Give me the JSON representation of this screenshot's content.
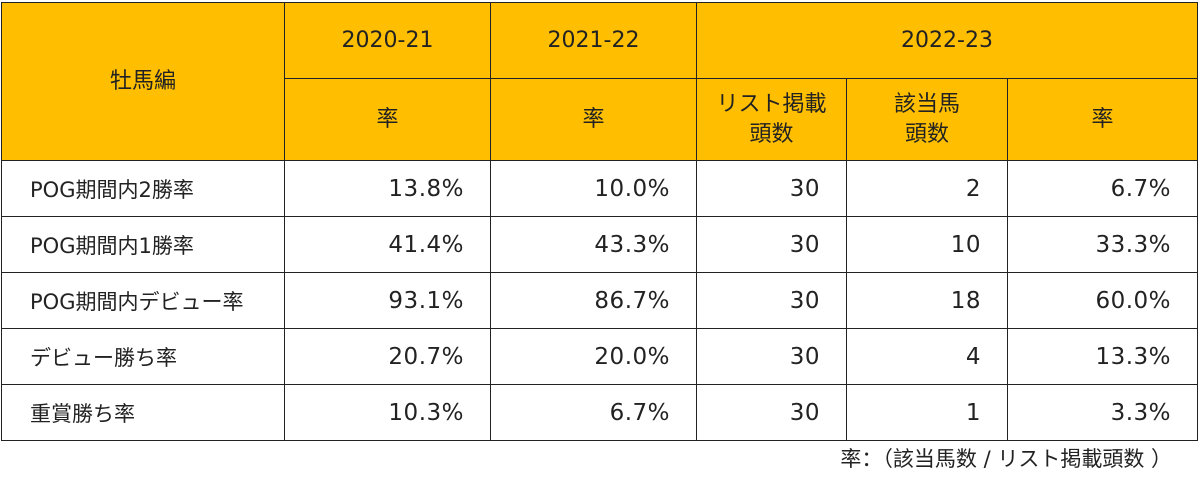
{
  "table": {
    "corner_label": "牡馬編",
    "season_1": "2020-21",
    "season_2": "2021-22",
    "season_3": "2022-23",
    "sub_rate_1": "率",
    "sub_rate_2": "率",
    "sub_listed_line1": "リスト掲載",
    "sub_listed_line2": "頭数",
    "sub_matched_line1": "該当馬",
    "sub_matched_line2": "頭数",
    "sub_rate_3": "率",
    "rows": [
      {
        "label": "POG期間内2勝率",
        "v1": "13.8%",
        "v2": "10.0%",
        "listed": "30",
        "matched": "2",
        "rate": "6.7%"
      },
      {
        "label": "POG期間内1勝率",
        "v1": "41.4%",
        "v2": "43.3%",
        "listed": "30",
        "matched": "10",
        "rate": "33.3%"
      },
      {
        "label": "POG期間内デビュー率",
        "v1": "93.1%",
        "v2": "86.7%",
        "listed": "30",
        "matched": "18",
        "rate": "60.0%"
      },
      {
        "label": "デビュー勝ち率",
        "v1": "20.7%",
        "v2": "20.0%",
        "listed": "30",
        "matched": "4",
        "rate": "13.3%"
      },
      {
        "label": "重賞勝ち率",
        "v1": "10.3%",
        "v2": "6.7%",
        "listed": "30",
        "matched": "1",
        "rate": "3.3%"
      }
    ]
  },
  "footnote": "率：（該当馬数 / リスト掲載頭数 ）",
  "colors": {
    "header_bg": "#FFBF00",
    "border": "#222222"
  }
}
